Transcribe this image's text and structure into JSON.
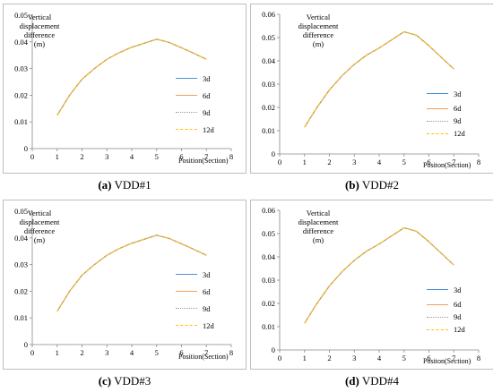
{
  "chart_data": [
    {
      "type": "line",
      "caption_letter": "(a)",
      "caption_text": " VDD#1",
      "ylabel": [
        "Vertical",
        "displacement",
        "difference",
        "(m)"
      ],
      "xlabel": "Position(Section)",
      "xlim": [
        0,
        8
      ],
      "ylim": [
        0,
        0.05
      ],
      "xticks": [
        "0",
        "1",
        "2",
        "3",
        "4",
        "5",
        "6",
        "7",
        "8"
      ],
      "yticks": [
        "0",
        "0.01",
        "0.02",
        "0.03",
        "0.04",
        "0.05"
      ],
      "x": [
        1,
        1.5,
        2,
        2.5,
        3,
        3.5,
        4,
        4.5,
        5,
        5.5,
        6,
        6.5,
        7
      ],
      "series": [
        {
          "name": "3d",
          "values": [
            0.0125,
            0.02,
            0.026,
            0.03,
            0.0335,
            0.036,
            0.038,
            0.0395,
            0.041,
            0.0398,
            0.0378,
            0.0357,
            0.0335
          ]
        },
        {
          "name": "6d",
          "values": [
            0.0125,
            0.02,
            0.026,
            0.03,
            0.0335,
            0.036,
            0.038,
            0.0395,
            0.041,
            0.0398,
            0.0378,
            0.0357,
            0.0335
          ]
        },
        {
          "name": "9d",
          "values": [
            0.0125,
            0.02,
            0.026,
            0.03,
            0.0335,
            0.036,
            0.038,
            0.0395,
            0.041,
            0.0398,
            0.0378,
            0.0357,
            0.0335
          ]
        },
        {
          "name": "12d",
          "values": [
            0.0125,
            0.02,
            0.026,
            0.03,
            0.0335,
            0.036,
            0.038,
            0.0395,
            0.041,
            0.0398,
            0.0378,
            0.0357,
            0.0335
          ]
        }
      ],
      "grid": false,
      "legend_position": "right"
    },
    {
      "type": "line",
      "caption_letter": "(b)",
      "caption_text": " VDD#2",
      "ylabel": [
        "Vertical",
        "displacement",
        "difference",
        "(m)"
      ],
      "xlabel": "Positon(Section)",
      "xlim": [
        0,
        8
      ],
      "ylim": [
        0,
        0.06
      ],
      "xticks": [
        "0",
        "1",
        "2",
        "3",
        "4",
        "5",
        "6",
        "7",
        "8"
      ],
      "yticks": [
        "0",
        "0.01",
        "0.02",
        "0.03",
        "0.04",
        "0.05",
        "0.06"
      ],
      "x": [
        1,
        1.5,
        2,
        2.5,
        3,
        3.5,
        4,
        4.5,
        5,
        5.5,
        6,
        6.5,
        7
      ],
      "series": [
        {
          "name": "3d",
          "values": [
            0.0115,
            0.02,
            0.0275,
            0.0335,
            0.0385,
            0.0425,
            0.0455,
            0.049,
            0.0525,
            0.051,
            0.0465,
            0.0415,
            0.0365
          ]
        },
        {
          "name": "6d",
          "values": [
            0.0115,
            0.02,
            0.0275,
            0.0335,
            0.0385,
            0.0425,
            0.0455,
            0.049,
            0.0525,
            0.051,
            0.0465,
            0.0415,
            0.0365
          ]
        },
        {
          "name": "9d",
          "values": [
            0.0115,
            0.02,
            0.0275,
            0.0335,
            0.0385,
            0.0425,
            0.0455,
            0.049,
            0.0525,
            0.051,
            0.0465,
            0.0415,
            0.0365
          ]
        },
        {
          "name": "12d",
          "values": [
            0.0115,
            0.02,
            0.0275,
            0.0335,
            0.0385,
            0.0425,
            0.0455,
            0.049,
            0.0525,
            0.051,
            0.0465,
            0.0415,
            0.0365
          ]
        }
      ],
      "grid": false,
      "legend_position": "right"
    },
    {
      "type": "line",
      "caption_letter": "(c)",
      "caption_text": " VDD#3",
      "ylabel": [
        "Vertical",
        "displacement",
        "difference",
        "(m)"
      ],
      "xlabel": "Position(Section)",
      "xlim": [
        0,
        8
      ],
      "ylim": [
        0,
        0.05
      ],
      "xticks": [
        "0",
        "1",
        "2",
        "3",
        "4",
        "5",
        "6",
        "7",
        "8"
      ],
      "yticks": [
        "0",
        "0.01",
        "0.02",
        "0.03",
        "0.04",
        "0.05"
      ],
      "x": [
        1,
        1.5,
        2,
        2.5,
        3,
        3.5,
        4,
        4.5,
        5,
        5.5,
        6,
        6.5,
        7
      ],
      "series": [
        {
          "name": "3d",
          "values": [
            0.0125,
            0.02,
            0.026,
            0.03,
            0.0335,
            0.036,
            0.038,
            0.0395,
            0.041,
            0.0398,
            0.0378,
            0.0357,
            0.0335
          ]
        },
        {
          "name": "6d",
          "values": [
            0.0125,
            0.02,
            0.026,
            0.03,
            0.0335,
            0.036,
            0.038,
            0.0395,
            0.041,
            0.0398,
            0.0378,
            0.0357,
            0.0335
          ]
        },
        {
          "name": "9d",
          "values": [
            0.0125,
            0.02,
            0.026,
            0.03,
            0.0335,
            0.036,
            0.038,
            0.0395,
            0.041,
            0.0398,
            0.0378,
            0.0357,
            0.0335
          ]
        },
        {
          "name": "12d",
          "values": [
            0.0125,
            0.02,
            0.026,
            0.03,
            0.0335,
            0.036,
            0.038,
            0.0395,
            0.041,
            0.0398,
            0.0378,
            0.0357,
            0.0335
          ]
        }
      ],
      "grid": false,
      "legend_position": "right"
    },
    {
      "type": "line",
      "caption_letter": "(d)",
      "caption_text": " VDD#4",
      "ylabel": [
        "Vertical",
        "displacement",
        "difference",
        "(m)"
      ],
      "xlabel": "Positon(Section)",
      "xlim": [
        0,
        8
      ],
      "ylim": [
        0,
        0.06
      ],
      "xticks": [
        "0",
        "1",
        "2",
        "3",
        "4",
        "5",
        "6",
        "7",
        "8"
      ],
      "yticks": [
        "0",
        "0.01",
        "0.02",
        "0.03",
        "0.04",
        "0.05",
        "0.06"
      ],
      "x": [
        1,
        1.5,
        2,
        2.5,
        3,
        3.5,
        4,
        4.5,
        5,
        5.5,
        6,
        6.5,
        7
      ],
      "series": [
        {
          "name": "3d",
          "values": [
            0.0115,
            0.02,
            0.0275,
            0.0335,
            0.0385,
            0.0425,
            0.0455,
            0.049,
            0.0525,
            0.051,
            0.0465,
            0.0415,
            0.0365
          ]
        },
        {
          "name": "6d",
          "values": [
            0.0115,
            0.02,
            0.0275,
            0.0335,
            0.0385,
            0.0425,
            0.0455,
            0.049,
            0.0525,
            0.051,
            0.0465,
            0.0415,
            0.0365
          ]
        },
        {
          "name": "9d",
          "values": [
            0.0115,
            0.02,
            0.0275,
            0.0335,
            0.0385,
            0.0425,
            0.0455,
            0.049,
            0.0525,
            0.051,
            0.0465,
            0.0415,
            0.0365
          ]
        },
        {
          "name": "12d",
          "values": [
            0.0115,
            0.02,
            0.0275,
            0.0335,
            0.0385,
            0.0425,
            0.0455,
            0.049,
            0.0525,
            0.051,
            0.0465,
            0.0415,
            0.0365
          ]
        }
      ],
      "grid": false,
      "legend_position": "right"
    }
  ],
  "series_styles": [
    {
      "name": "3d",
      "color": "#4a90d9",
      "dash": "none"
    },
    {
      "name": "6d",
      "color": "#f0a060",
      "dash": "none"
    },
    {
      "name": "9d",
      "color": "#999999",
      "dash": "2,1.5"
    },
    {
      "name": "12d",
      "color": "#ffc000",
      "dash": "4,3"
    }
  ]
}
